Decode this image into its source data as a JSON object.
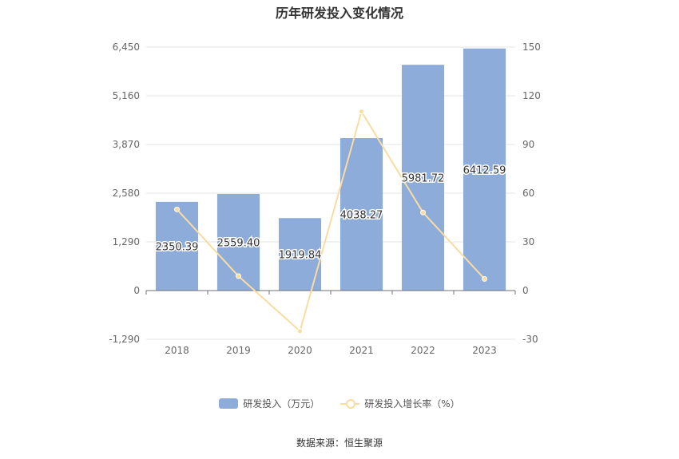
{
  "chart_data": {
    "type": "bar",
    "title": "历年研发投入变化情况",
    "categories": [
      "2018",
      "2019",
      "2020",
      "2021",
      "2022",
      "2023"
    ],
    "series": [
      {
        "name": "研发投入（万元）",
        "type": "bar",
        "axis": "left",
        "values": [
          2350.39,
          2559.4,
          1919.84,
          4038.27,
          5981.72,
          6412.59
        ],
        "labels": [
          "2350.39",
          "2559.40",
          "1919.84",
          "4038.27",
          "5981.72",
          "6412.59"
        ],
        "color": "#8eacda"
      },
      {
        "name": "研发投入增长率（%）",
        "type": "line",
        "axis": "right",
        "values": [
          50.0,
          8.9,
          -25.0,
          110.3,
          48.1,
          7.2
        ],
        "color": "#f9dca2"
      }
    ],
    "y_left": {
      "ylim": [
        -1290,
        6450
      ],
      "ticks": [
        "-1,290",
        "0",
        "1,290",
        "2,580",
        "3,870",
        "5,160",
        "6,450"
      ]
    },
    "y_right": {
      "ylim": [
        -30,
        150
      ],
      "ticks": [
        "-30",
        "0",
        "30",
        "60",
        "90",
        "120",
        "150"
      ]
    },
    "grid": true,
    "legend_position": "bottom"
  },
  "source_text": "数据来源：恒生聚源"
}
